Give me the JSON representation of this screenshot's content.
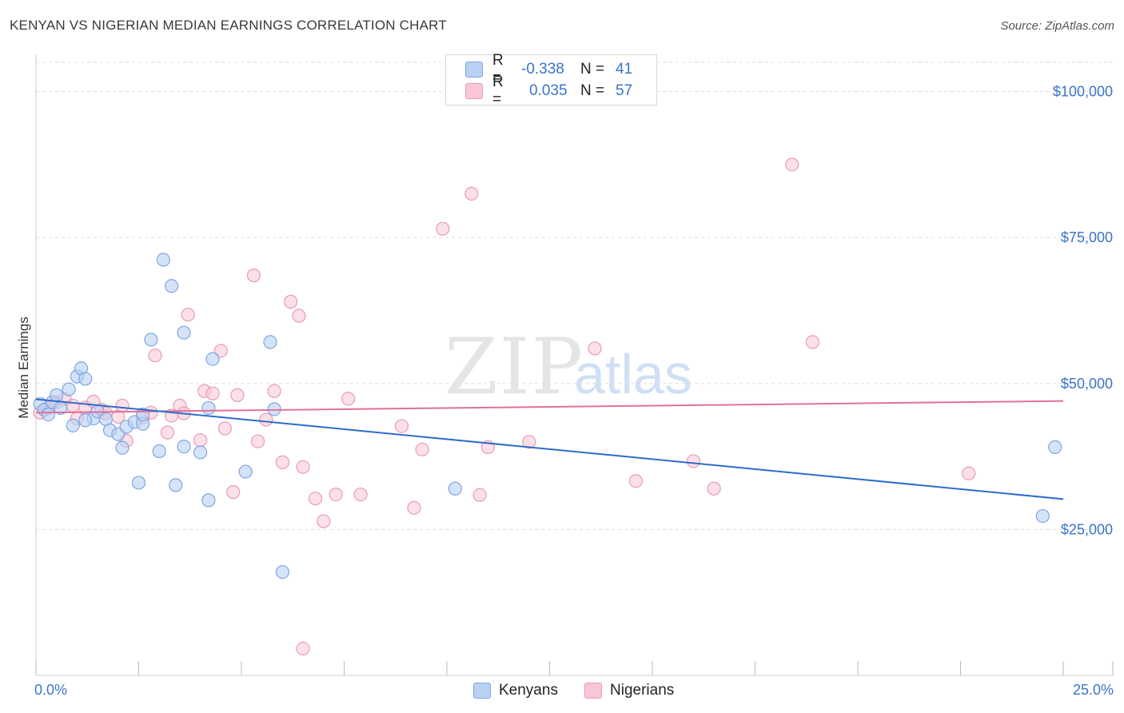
{
  "title": "KENYAN VS NIGERIAN MEDIAN EARNINGS CORRELATION CHART",
  "source": "Source: ZipAtlas.com",
  "watermark": {
    "part1": "ZIP",
    "part2": "atlas"
  },
  "legend": {
    "rows": [
      {
        "r_label": "R =",
        "r_value": "-0.338",
        "n_label": "N =",
        "n_value": "41"
      },
      {
        "r_label": "R =",
        "r_value": "0.035",
        "n_label": "N =",
        "n_value": "57"
      }
    ]
  },
  "bottom_legend": {
    "kenyans": "Kenyans",
    "nigerians": "Nigerians"
  },
  "colors": {
    "kenyan_fill": "#b9d1f5",
    "kenyan_stroke": "#7ea6e0",
    "kenyan_line": "#2d6cc9",
    "nigerian_fill": "#f9c6d6",
    "nigerian_stroke": "#e89bb5",
    "nigerian_line": "#e0709a",
    "tick_text": "#3a74c9",
    "grid": "#dddddd"
  },
  "chart_data": {
    "type": "scatter",
    "xlabel": "",
    "ylabel": "Median Earnings",
    "xlim": [
      0,
      25
    ],
    "ylim": [
      0,
      105000
    ],
    "x_tick_labels": [
      "0.0%",
      "25.0%"
    ],
    "y_tick_labels": [
      "$25,000",
      "$50,000",
      "$75,000",
      "$100,000"
    ],
    "y_tick_values": [
      25000,
      50000,
      75000,
      100000
    ],
    "legend_position": "top-center",
    "grid": true,
    "series": [
      {
        "name": "Kenyans",
        "r": -0.338,
        "n": 41,
        "trend": {
          "x": [
            0,
            25
          ],
          "y": [
            47300,
            30200
          ]
        },
        "points": [
          [
            0.1,
            46500
          ],
          [
            0.2,
            45500
          ],
          [
            0.4,
            46800
          ],
          [
            0.5,
            48000
          ],
          [
            0.6,
            45800
          ],
          [
            0.8,
            49000
          ],
          [
            0.9,
            42800
          ],
          [
            1.0,
            51200
          ],
          [
            1.1,
            52600
          ],
          [
            1.2,
            50800
          ],
          [
            1.4,
            44000
          ],
          [
            1.5,
            45200
          ],
          [
            1.7,
            43900
          ],
          [
            1.8,
            42000
          ],
          [
            2.0,
            41300
          ],
          [
            2.1,
            39000
          ],
          [
            2.2,
            42600
          ],
          [
            2.4,
            43400
          ],
          [
            2.5,
            33000
          ],
          [
            2.6,
            43100
          ],
          [
            2.8,
            57500
          ],
          [
            3.0,
            38400
          ],
          [
            3.1,
            71200
          ],
          [
            3.3,
            66700
          ],
          [
            3.4,
            32600
          ],
          [
            3.6,
            39200
          ],
          [
            3.6,
            58700
          ],
          [
            4.0,
            38200
          ],
          [
            4.2,
            45800
          ],
          [
            4.3,
            54200
          ],
          [
            4.2,
            30000
          ],
          [
            5.1,
            34900
          ],
          [
            5.7,
            57100
          ],
          [
            5.8,
            45600
          ],
          [
            6.0,
            17700
          ],
          [
            10.2,
            32000
          ],
          [
            24.5,
            27300
          ],
          [
            24.8,
            39100
          ],
          [
            1.2,
            43700
          ],
          [
            2.6,
            44700
          ],
          [
            0.3,
            44700
          ]
        ]
      },
      {
        "name": "Nigerians",
        "r": 0.035,
        "n": 57,
        "trend": {
          "x": [
            0,
            25
          ],
          "y": [
            45000,
            47000
          ]
        },
        "points": [
          [
            0.1,
            45000
          ],
          [
            0.3,
            45800
          ],
          [
            0.5,
            46800
          ],
          [
            0.7,
            47300
          ],
          [
            0.9,
            46200
          ],
          [
            1.0,
            44000
          ],
          [
            1.2,
            45900
          ],
          [
            1.4,
            46900
          ],
          [
            1.6,
            45500
          ],
          [
            1.7,
            44900
          ],
          [
            2.0,
            44300
          ],
          [
            2.1,
            46200
          ],
          [
            2.2,
            40200
          ],
          [
            2.6,
            44200
          ],
          [
            2.8,
            45000
          ],
          [
            2.9,
            54800
          ],
          [
            3.2,
            41600
          ],
          [
            3.3,
            44500
          ],
          [
            3.5,
            46200
          ],
          [
            3.6,
            44900
          ],
          [
            3.7,
            61800
          ],
          [
            4.0,
            40300
          ],
          [
            4.1,
            48700
          ],
          [
            4.3,
            48300
          ],
          [
            4.5,
            55600
          ],
          [
            4.6,
            42300
          ],
          [
            4.8,
            31400
          ],
          [
            4.9,
            48000
          ],
          [
            5.3,
            68500
          ],
          [
            5.4,
            40100
          ],
          [
            5.6,
            43800
          ],
          [
            5.8,
            48700
          ],
          [
            6.0,
            36500
          ],
          [
            6.2,
            64000
          ],
          [
            6.4,
            61600
          ],
          [
            6.5,
            35700
          ],
          [
            6.8,
            30300
          ],
          [
            7.0,
            26400
          ],
          [
            7.3,
            31000
          ],
          [
            7.6,
            47400
          ],
          [
            7.9,
            31000
          ],
          [
            8.9,
            42700
          ],
          [
            9.2,
            28700
          ],
          [
            9.4,
            38700
          ],
          [
            9.9,
            76500
          ],
          [
            10.6,
            82500
          ],
          [
            10.8,
            30900
          ],
          [
            11.0,
            39100
          ],
          [
            12.0,
            40000
          ],
          [
            13.6,
            56000
          ],
          [
            14.6,
            33300
          ],
          [
            16.0,
            36700
          ],
          [
            16.5,
            32000
          ],
          [
            18.4,
            87500
          ],
          [
            18.9,
            57100
          ],
          [
            22.7,
            34600
          ],
          [
            6.5,
            4600
          ]
        ]
      }
    ]
  }
}
